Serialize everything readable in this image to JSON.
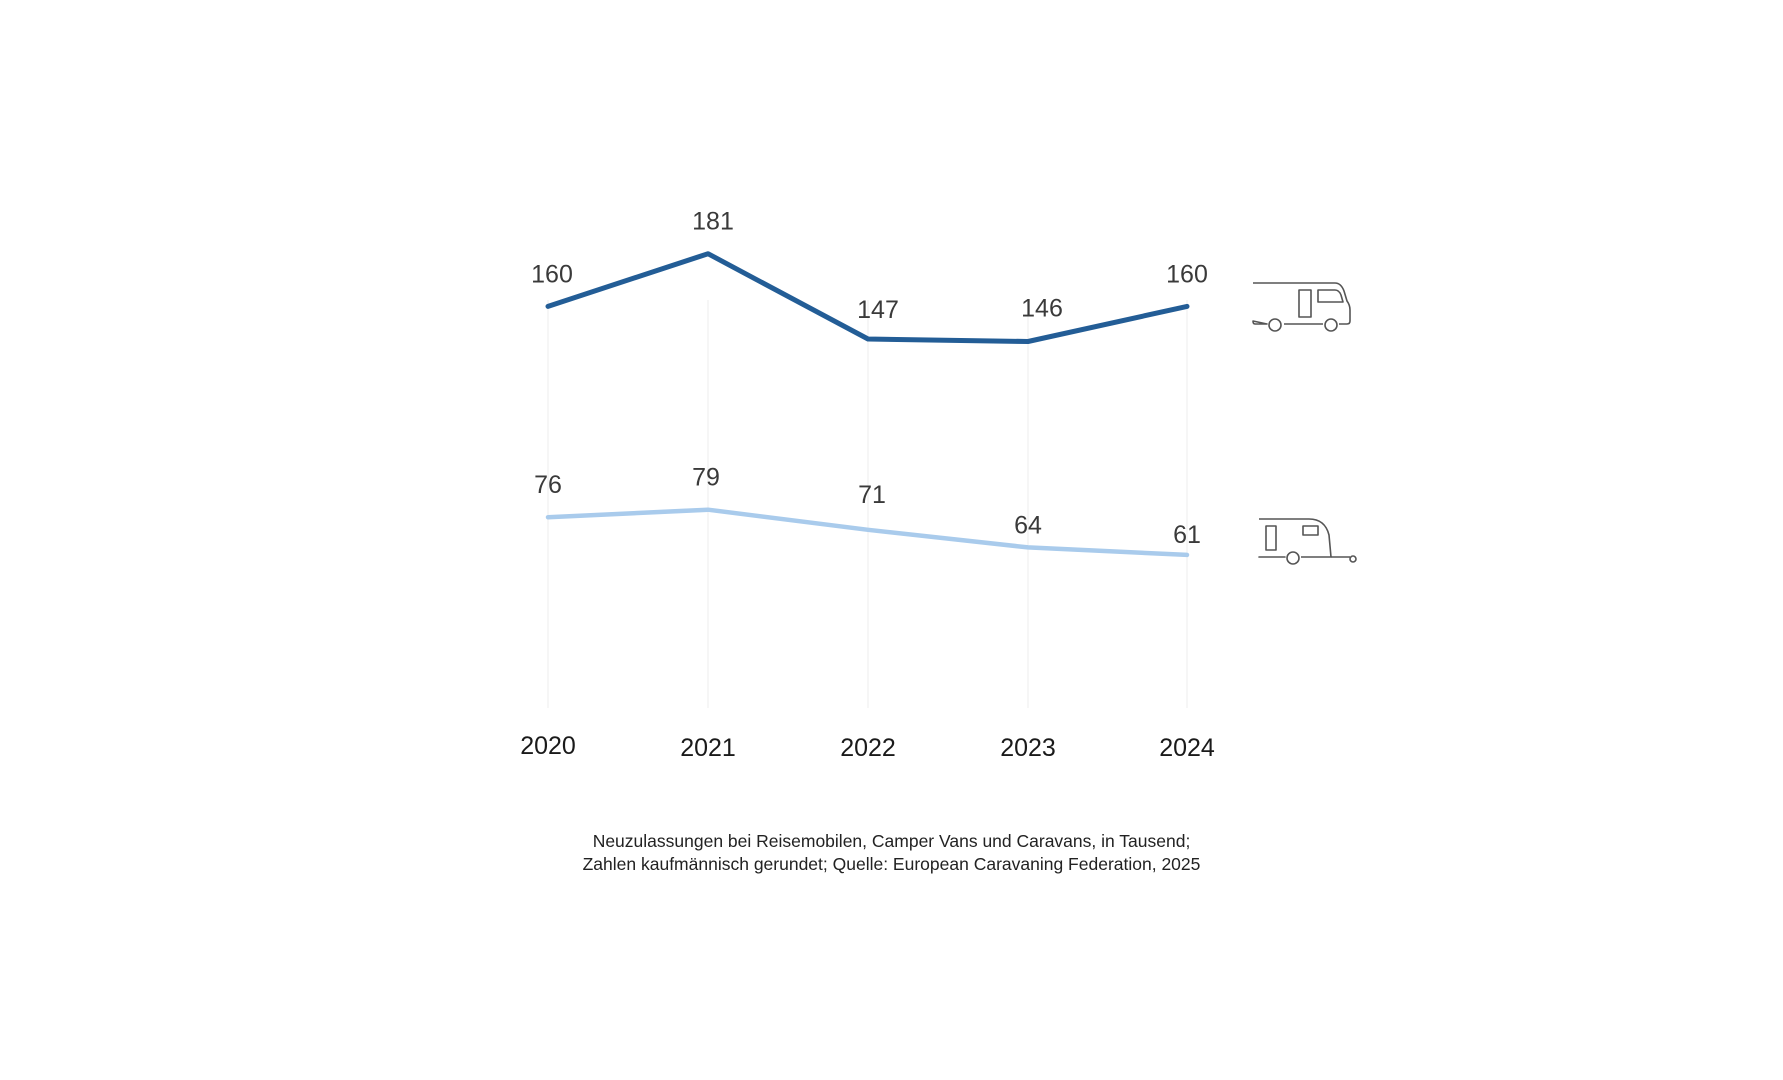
{
  "chart_data": {
    "type": "line",
    "x": [
      "2020",
      "2021",
      "2022",
      "2023",
      "2024"
    ],
    "ylim": [
      0,
      200
    ],
    "grid": "vertical",
    "legend": "icons at right end of each line",
    "series": [
      {
        "name": "Reisemobile",
        "icon": "motorhome-icon",
        "color": "#235d96",
        "values": [
          160,
          181,
          147,
          146,
          160
        ]
      },
      {
        "name": "Caravans",
        "icon": "caravan-icon",
        "color": "#a9cbec",
        "values": [
          76,
          79,
          71,
          64,
          61
        ]
      }
    ]
  },
  "caption": {
    "line1": "Neuzulassungen bei Reisemobilen, Camper Vans und Caravans, in Tausend;",
    "line2": "Zahlen kaufmännisch gerundet; Quelle: European Caravaning Federation, 2025"
  }
}
